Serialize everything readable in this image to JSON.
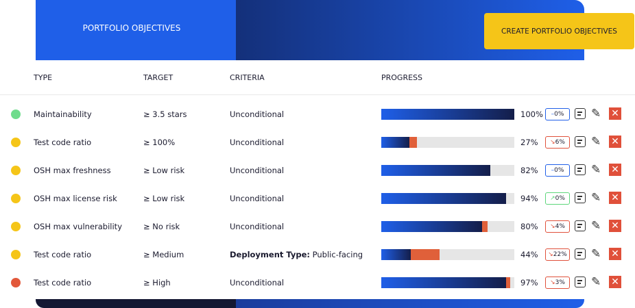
{
  "header": {
    "title": "PORTFOLIO OBJECTIVES",
    "button": "CREATE PORTFOLIO OBJECTIVES"
  },
  "table": {
    "columns": [
      "TYPE",
      "TARGET",
      "CRITERIA",
      "PROGRESS"
    ],
    "rows": [
      {
        "status_color": "#6fdc8c",
        "type": "Maintainability",
        "target": "≥ 3.5 stars",
        "criteria": "Unconditional",
        "progress": {
          "value": 100,
          "label": "100%"
        },
        "change": {
          "value": 0,
          "label": "0%",
          "trend": "flat"
        }
      },
      {
        "status_color": "#f5c518",
        "type": "Test code ratio",
        "target": "≥ 100%",
        "criteria": "Unconditional",
        "progress": {
          "value": 27,
          "label": "27%"
        },
        "change": {
          "value": 6,
          "label": "6%",
          "trend": "down"
        }
      },
      {
        "status_color": "#f5c518",
        "type": "OSH max freshness",
        "target": "≥ Low risk",
        "criteria": "Unconditional",
        "progress": {
          "value": 82,
          "label": "82%"
        },
        "change": {
          "value": 0,
          "label": "0%",
          "trend": "flat"
        }
      },
      {
        "status_color": "#f5c518",
        "type": "OSH max license risk",
        "target": "≥ Low risk",
        "criteria": "Unconditional",
        "progress": {
          "value": 94,
          "label": "94%"
        },
        "change": {
          "value": 0,
          "label": "0%",
          "trend": "up"
        }
      },
      {
        "status_color": "#f5c518",
        "type": "OSH max vulnerability",
        "target": "≥ No risk",
        "criteria": "Unconditional",
        "progress": {
          "value": 80,
          "label": "80%"
        },
        "change": {
          "value": 4,
          "label": "4%",
          "trend": "down"
        }
      },
      {
        "status_color": "#f5c518",
        "type": "Test code ratio",
        "target": "≥ Medium",
        "criteria_label": "Deployment Type:",
        "criteria": "Public-facing",
        "progress": {
          "value": 44,
          "label": "44%"
        },
        "change": {
          "value": 22,
          "label": "22%",
          "trend": "down"
        }
      },
      {
        "status_color": "#e2583a",
        "type": "Test code ratio",
        "target": "≥ High",
        "criteria": "Unconditional",
        "progress": {
          "value": 97,
          "label": "97%"
        },
        "change": {
          "value": 3,
          "label": "3%",
          "trend": "down"
        }
      }
    ]
  }
}
